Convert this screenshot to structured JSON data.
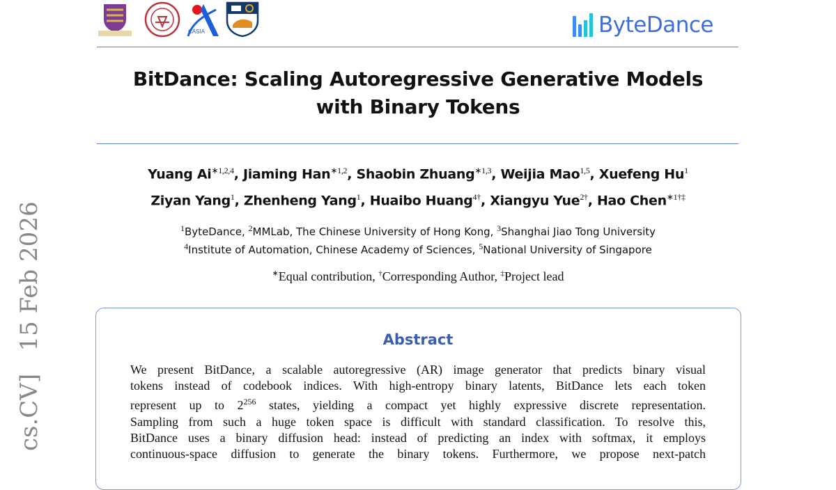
{
  "header": {
    "logos": [
      "cuhk-logo",
      "sjtu-logo",
      "casia-logo",
      "nus-logo"
    ],
    "brand": "ByteDance",
    "brand_color": "#3c6fd8"
  },
  "title_line1": "BitDance: Scaling Autoregressive Generative Models",
  "title_line2": "with Binary Tokens",
  "authors_line1": [
    {
      "name": "Yuang Ai",
      "sup": "∗1,2,4"
    },
    {
      "name": "Jiaming Han",
      "sup": "∗1,2"
    },
    {
      "name": "Shaobin Zhuang",
      "sup": "∗1,3"
    },
    {
      "name": "Weijia Mao",
      "sup": "1,5"
    },
    {
      "name": "Xuefeng Hu",
      "sup": "1"
    }
  ],
  "authors_line2": [
    {
      "name": "Ziyan Yang",
      "sup": "1"
    },
    {
      "name": "Zhenheng Yang",
      "sup": "1"
    },
    {
      "name": "Huaibo Huang",
      "sup": "4†"
    },
    {
      "name": "Xiangyu Yue",
      "sup": "2†"
    },
    {
      "name": "Hao Chen",
      "sup": "∗1†‡"
    }
  ],
  "affiliations_line1": [
    {
      "sup": "1",
      "name": "ByteDance"
    },
    {
      "sup": "2",
      "name": "MMLab, The Chinese University of Hong Kong"
    },
    {
      "sup": "3",
      "name": "Shanghai Jiao Tong University"
    }
  ],
  "affiliations_line2": [
    {
      "sup": "4",
      "name": "Institute of Automation, Chinese Academy of Sciences"
    },
    {
      "sup": "5",
      "name": "National University of Singapore"
    }
  ],
  "notes": [
    {
      "sup": "∗",
      "text": "Equal contribution"
    },
    {
      "sup": "†",
      "text": "Corresponding Author"
    },
    {
      "sup": "‡",
      "text": "Project lead"
    }
  ],
  "abstract": {
    "heading": "Abstract",
    "heading_color": "#3a5fb0",
    "lines": [
      "We present BitDance, a scalable autoregressive (AR) image generator that predicts binary visual",
      "tokens instead of codebook indices. With high-entropy binary latents, BitDance lets each token",
      "represent up to 2^256 states, yielding a compact yet highly expressive discrete representation.",
      "Sampling from such a huge token space is difficult with standard classification. To resolve this,",
      "BitDance uses a binary diffusion head: instead of predicting an index with softmax, it employs",
      "continuous-space diffusion to generate the binary tokens. Furthermore, we propose next-patch"
    ]
  },
  "sidebar": {
    "arxiv_stamp": "cs.CV]   15 Feb 2026"
  }
}
